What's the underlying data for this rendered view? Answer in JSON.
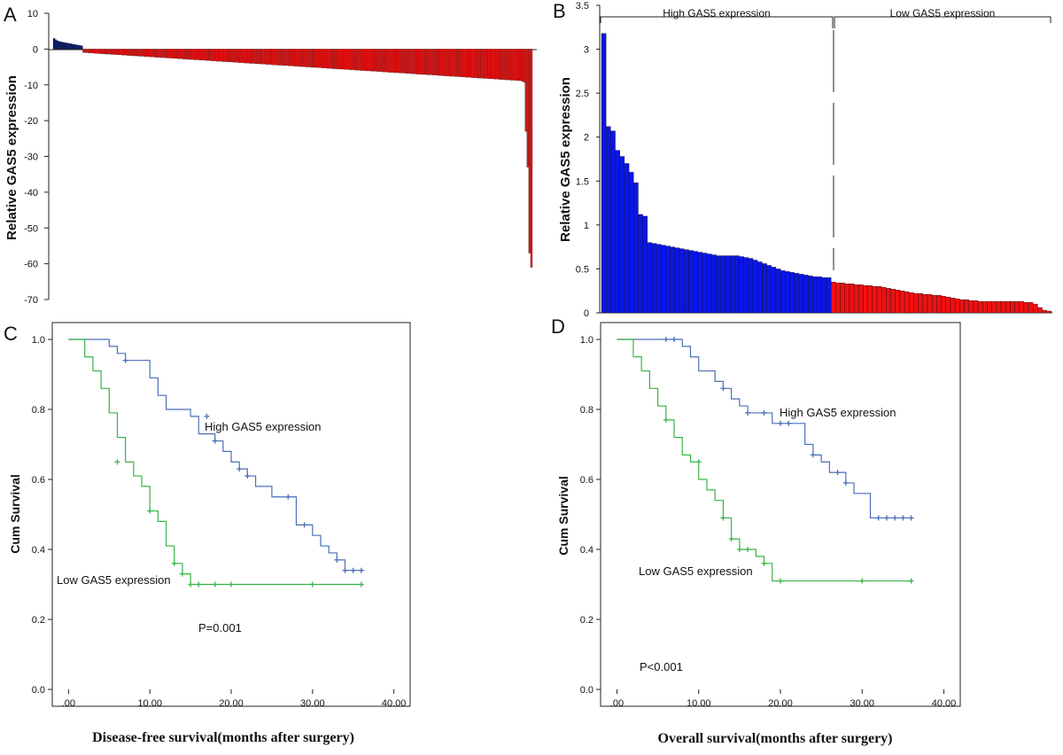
{
  "chart_data": [
    {
      "panel": "A",
      "type": "bar",
      "ylabel": "Relative GAS5 expression",
      "ylim": [
        -70,
        10
      ],
      "yticks": [
        10,
        0,
        -10,
        -20,
        -30,
        -40,
        -50,
        -60,
        -70
      ],
      "colors": {
        "positive": "#0b1f6e",
        "negative": "#ee1111"
      },
      "values": [
        3.0,
        2.6,
        2.3,
        2.1,
        2.0,
        1.9,
        1.8,
        1.7,
        1.6,
        1.5,
        1.4,
        1.3,
        1.2,
        1.1,
        1.0,
        0.9,
        -1.0,
        -1.0,
        -1.0,
        -1.1,
        -1.1,
        -1.1,
        -1.2,
        -1.2,
        -1.2,
        -1.3,
        -1.3,
        -1.3,
        -1.4,
        -1.4,
        -1.4,
        -1.5,
        -1.5,
        -1.5,
        -1.6,
        -1.6,
        -1.6,
        -1.7,
        -1.7,
        -1.7,
        -1.8,
        -1.8,
        -1.8,
        -1.9,
        -1.9,
        -1.9,
        -2.0,
        -2.0,
        -2.0,
        -2.1,
        -2.1,
        -2.1,
        -2.2,
        -2.2,
        -2.2,
        -2.3,
        -2.3,
        -2.3,
        -2.4,
        -2.4,
        -2.4,
        -2.5,
        -2.5,
        -2.5,
        -2.6,
        -2.6,
        -2.6,
        -2.7,
        -2.7,
        -2.7,
        -2.8,
        -2.8,
        -2.8,
        -2.9,
        -2.9,
        -2.9,
        -3.0,
        -3.0,
        -3.0,
        -3.1,
        -3.1,
        -3.1,
        -3.2,
        -3.2,
        -3.2,
        -3.3,
        -3.3,
        -3.3,
        -3.4,
        -3.4,
        -3.4,
        -3.5,
        -3.5,
        -3.5,
        -3.6,
        -3.6,
        -3.6,
        -3.7,
        -3.7,
        -3.7,
        -3.8,
        -3.8,
        -3.8,
        -3.9,
        -3.9,
        -3.9,
        -4.0,
        -4.0,
        -4.0,
        -4.1,
        -4.1,
        -4.1,
        -4.2,
        -4.2,
        -4.2,
        -4.3,
        -4.3,
        -4.3,
        -4.4,
        -4.4,
        -4.4,
        -4.5,
        -4.5,
        -4.5,
        -4.6,
        -4.6,
        -4.6,
        -4.7,
        -4.7,
        -4.7,
        -4.8,
        -4.8,
        -4.8,
        -4.9,
        -4.9,
        -4.9,
        -5.0,
        -5.0,
        -5.0,
        -5.1,
        -5.1,
        -5.1,
        -5.2,
        -5.2,
        -5.2,
        -5.3,
        -5.3,
        -5.3,
        -5.4,
        -5.4,
        -5.4,
        -5.5,
        -5.5,
        -5.5,
        -5.6,
        -5.6,
        -5.6,
        -5.7,
        -5.7,
        -5.7,
        -5.8,
        -5.8,
        -5.8,
        -5.9,
        -5.9,
        -5.9,
        -6.0,
        -6.0,
        -6.0,
        -6.1,
        -6.1,
        -6.1,
        -6.2,
        -6.2,
        -6.2,
        -6.3,
        -6.3,
        -6.3,
        -6.4,
        -6.4,
        -6.4,
        -6.5,
        -6.5,
        -6.5,
        -6.6,
        -6.6,
        -6.6,
        -6.7,
        -6.7,
        -6.7,
        -6.8,
        -6.8,
        -6.8,
        -6.9,
        -6.9,
        -6.9,
        -7.0,
        -7.0,
        -7.0,
        -7.1,
        -7.1,
        -7.1,
        -7.2,
        -7.2,
        -7.2,
        -7.3,
        -7.3,
        -7.3,
        -7.4,
        -7.4,
        -7.4,
        -7.5,
        -7.5,
        -7.5,
        -7.6,
        -7.6,
        -7.6,
        -7.7,
        -7.7,
        -7.7,
        -7.8,
        -7.8,
        -7.8,
        -7.9,
        -7.9,
        -7.9,
        -8.0,
        -8.0,
        -8.0,
        -8.1,
        -8.1,
        -8.1,
        -8.2,
        -8.2,
        -8.2,
        -8.3,
        -8.3,
        -8.3,
        -8.4,
        -8.4,
        -8.4,
        -8.5,
        -8.5,
        -8.5,
        -8.6,
        -8.6,
        -8.6,
        -8.7,
        -8.7,
        -8.7,
        -8.8,
        -8.8,
        -8.8,
        -9.0,
        -9.3,
        -23.0,
        -33.0,
        -57.0,
        -61.0
      ]
    },
    {
      "panel": "B",
      "type": "bar",
      "ylabel": "Relative GAS5 expression",
      "ylim": [
        0,
        3.5
      ],
      "yticks": [
        0,
        0.5,
        1,
        1.5,
        2,
        2.5,
        3,
        3.5
      ],
      "groups": [
        "High GAS5 expression",
        "Low GAS5 expression"
      ],
      "split_index": 50,
      "colors": {
        "high": "#0b16e6",
        "low": "#ee1111"
      },
      "values": [
        3.18,
        2.12,
        2.07,
        1.85,
        1.78,
        1.7,
        1.6,
        1.48,
        1.12,
        1.1,
        0.8,
        0.79,
        0.78,
        0.77,
        0.76,
        0.75,
        0.74,
        0.73,
        0.72,
        0.71,
        0.7,
        0.69,
        0.68,
        0.67,
        0.66,
        0.65,
        0.65,
        0.65,
        0.65,
        0.65,
        0.64,
        0.63,
        0.62,
        0.6,
        0.58,
        0.56,
        0.54,
        0.52,
        0.5,
        0.48,
        0.47,
        0.46,
        0.45,
        0.44,
        0.43,
        0.42,
        0.41,
        0.41,
        0.4,
        0.4,
        0.35,
        0.34,
        0.34,
        0.33,
        0.33,
        0.32,
        0.32,
        0.31,
        0.31,
        0.3,
        0.3,
        0.29,
        0.28,
        0.27,
        0.26,
        0.25,
        0.24,
        0.23,
        0.22,
        0.22,
        0.21,
        0.21,
        0.2,
        0.2,
        0.19,
        0.18,
        0.17,
        0.16,
        0.15,
        0.15,
        0.14,
        0.14,
        0.13,
        0.13,
        0.13,
        0.13,
        0.13,
        0.13,
        0.13,
        0.13,
        0.13,
        0.13,
        0.12,
        0.12,
        0.1,
        0.06,
        0.03,
        0.02
      ]
    },
    {
      "panel": "C",
      "type": "line",
      "subtype": "kaplan-meier",
      "xlabel": "Disease-free survival(months after surgery)",
      "ylabel": "Cum Survival",
      "xlim": [
        -2,
        42
      ],
      "ylim": [
        0,
        1
      ],
      "xticks": [
        0,
        10,
        20,
        30,
        40
      ],
      "xtick_labels": [
        ".00",
        "10.00",
        "20.00",
        "30.00",
        "40.00"
      ],
      "yticks": [
        0,
        0.2,
        0.4,
        0.6,
        0.8,
        1.0
      ],
      "ytick_labels": [
        "0.0",
        "0.2",
        "0.4",
        "0.6",
        "0.8",
        "1.0"
      ],
      "pvalue": "P=0.001",
      "series": [
        {
          "name": "High GAS5 expression",
          "color": "#4a6fb8",
          "steps": [
            [
              0,
              1.0
            ],
            [
              5,
              0.98
            ],
            [
              6,
              0.96
            ],
            [
              7,
              0.94
            ],
            [
              10,
              0.89
            ],
            [
              11,
              0.84
            ],
            [
              12,
              0.8
            ],
            [
              15,
              0.78
            ],
            [
              16,
              0.73
            ],
            [
              18,
              0.71
            ],
            [
              19,
              0.68
            ],
            [
              20,
              0.65
            ],
            [
              21,
              0.63
            ],
            [
              22,
              0.61
            ],
            [
              23,
              0.58
            ],
            [
              25,
              0.55
            ],
            [
              28,
              0.47
            ],
            [
              30,
              0.44
            ],
            [
              31,
              0.41
            ],
            [
              32,
              0.39
            ],
            [
              33,
              0.37
            ],
            [
              34,
              0.34
            ],
            [
              36,
              0.34
            ]
          ],
          "censored": [
            [
              7,
              0.94
            ],
            [
              17,
              0.78
            ],
            [
              18,
              0.71
            ],
            [
              21,
              0.63
            ],
            [
              22,
              0.61
            ],
            [
              27,
              0.55
            ],
            [
              29,
              0.47
            ],
            [
              33,
              0.37
            ],
            [
              34,
              0.34
            ],
            [
              35,
              0.34
            ],
            [
              36,
              0.34
            ]
          ]
        },
        {
          "name": "Low GAS5 expression",
          "color": "#39b548",
          "steps": [
            [
              0,
              1.0
            ],
            [
              2,
              0.95
            ],
            [
              3,
              0.91
            ],
            [
              4,
              0.86
            ],
            [
              5,
              0.79
            ],
            [
              6,
              0.72
            ],
            [
              7,
              0.65
            ],
            [
              8,
              0.61
            ],
            [
              9,
              0.58
            ],
            [
              10,
              0.51
            ],
            [
              11,
              0.48
            ],
            [
              12,
              0.41
            ],
            [
              13,
              0.36
            ],
            [
              14,
              0.33
            ],
            [
              15,
              0.3
            ],
            [
              36,
              0.3
            ]
          ],
          "censored": [
            [
              6,
              0.65
            ],
            [
              10,
              0.51
            ],
            [
              13,
              0.36
            ],
            [
              14,
              0.33
            ],
            [
              15,
              0.3
            ],
            [
              16,
              0.3
            ],
            [
              18,
              0.3
            ],
            [
              20,
              0.3
            ],
            [
              30,
              0.3
            ],
            [
              36,
              0.3
            ]
          ]
        }
      ]
    },
    {
      "panel": "D",
      "type": "line",
      "subtype": "kaplan-meier",
      "xlabel": "Overall survival(months after surgery)",
      "ylabel": "Cum Survival",
      "xlim": [
        -2,
        42
      ],
      "ylim": [
        0,
        1
      ],
      "xticks": [
        0,
        10,
        20,
        30,
        40
      ],
      "xtick_labels": [
        ".00",
        "10.00",
        "20.00",
        "30.00",
        "40.00"
      ],
      "yticks": [
        0,
        0.2,
        0.4,
        0.6,
        0.8,
        1.0
      ],
      "ytick_labels": [
        "0.0",
        "0.2",
        "0.4",
        "0.6",
        "0.8",
        "1.0"
      ],
      "pvalue": "P<0.001",
      "series": [
        {
          "name": "High GAS5 expression",
          "color": "#4a6fb8",
          "steps": [
            [
              0,
              1.0
            ],
            [
              8,
              0.98
            ],
            [
              9,
              0.95
            ],
            [
              10,
              0.91
            ],
            [
              12,
              0.88
            ],
            [
              13,
              0.86
            ],
            [
              14,
              0.83
            ],
            [
              15,
              0.81
            ],
            [
              16,
              0.79
            ],
            [
              19,
              0.76
            ],
            [
              23,
              0.7
            ],
            [
              24,
              0.67
            ],
            [
              25,
              0.65
            ],
            [
              26,
              0.62
            ],
            [
              28,
              0.59
            ],
            [
              29,
              0.56
            ],
            [
              31,
              0.49
            ],
            [
              36,
              0.49
            ]
          ],
          "censored": [
            [
              6,
              1.0
            ],
            [
              7,
              1.0
            ],
            [
              13,
              0.86
            ],
            [
              16,
              0.79
            ],
            [
              18,
              0.79
            ],
            [
              20,
              0.76
            ],
            [
              21,
              0.76
            ],
            [
              24,
              0.67
            ],
            [
              27,
              0.62
            ],
            [
              28,
              0.59
            ],
            [
              32,
              0.49
            ],
            [
              33,
              0.49
            ],
            [
              34,
              0.49
            ],
            [
              35,
              0.49
            ],
            [
              36,
              0.49
            ]
          ]
        },
        {
          "name": "Low GAS5 expression",
          "color": "#39b548",
          "steps": [
            [
              0,
              1.0
            ],
            [
              2,
              0.95
            ],
            [
              3,
              0.91
            ],
            [
              4,
              0.86
            ],
            [
              5,
              0.81
            ],
            [
              6,
              0.77
            ],
            [
              7,
              0.72
            ],
            [
              8,
              0.67
            ],
            [
              9,
              0.65
            ],
            [
              10,
              0.6
            ],
            [
              11,
              0.57
            ],
            [
              12,
              0.54
            ],
            [
              13,
              0.49
            ],
            [
              14,
              0.43
            ],
            [
              15,
              0.4
            ],
            [
              17,
              0.38
            ],
            [
              18,
              0.36
            ],
            [
              19,
              0.31
            ],
            [
              36,
              0.31
            ]
          ],
          "censored": [
            [
              6,
              0.77
            ],
            [
              10,
              0.65
            ],
            [
              13,
              0.49
            ],
            [
              14,
              0.43
            ],
            [
              15,
              0.4
            ],
            [
              16,
              0.4
            ],
            [
              18,
              0.36
            ],
            [
              20,
              0.31
            ],
            [
              30,
              0.31
            ],
            [
              36,
              0.31
            ]
          ]
        }
      ]
    }
  ]
}
